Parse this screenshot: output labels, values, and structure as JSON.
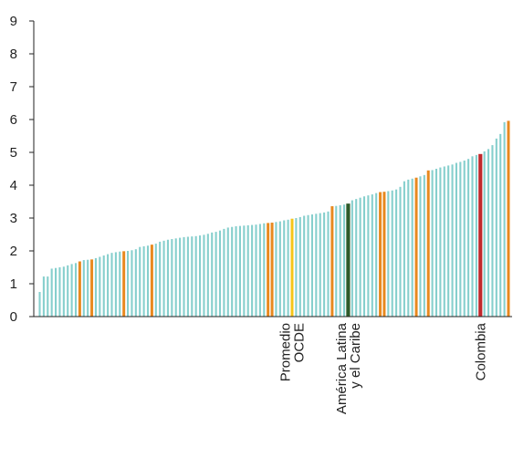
{
  "chart_data": {
    "type": "bar",
    "title": "",
    "xlabel": "",
    "ylabel": "",
    "ylim": [
      0,
      9
    ],
    "yticks": [
      0,
      1,
      2,
      3,
      4,
      5,
      6,
      7,
      8,
      9
    ],
    "grid": false,
    "colors": {
      "default": "#86cfcd",
      "oecd_member": "#e8891f",
      "oecd_average": "#f5c518",
      "latam_caribbean": "#2e5b2a",
      "colombia": "#c0282d",
      "axis": "#222222"
    },
    "values": [
      0.75,
      1.22,
      1.22,
      1.46,
      1.48,
      1.5,
      1.52,
      1.56,
      1.6,
      1.63,
      1.68,
      1.72,
      1.73,
      1.74,
      1.78,
      1.82,
      1.86,
      1.9,
      1.94,
      1.96,
      1.98,
      1.99,
      2.0,
      2.02,
      2.05,
      2.12,
      2.14,
      2.16,
      2.19,
      2.22,
      2.28,
      2.31,
      2.34,
      2.36,
      2.38,
      2.4,
      2.42,
      2.43,
      2.44,
      2.45,
      2.47,
      2.49,
      2.52,
      2.56,
      2.58,
      2.62,
      2.67,
      2.71,
      2.73,
      2.75,
      2.76,
      2.77,
      2.78,
      2.79,
      2.8,
      2.82,
      2.84,
      2.85,
      2.86,
      2.88,
      2.9,
      2.93,
      2.95,
      2.98,
      3.0,
      3.03,
      3.07,
      3.09,
      3.11,
      3.13,
      3.15,
      3.17,
      3.2,
      3.36,
      3.37,
      3.39,
      3.41,
      3.44,
      3.54,
      3.58,
      3.62,
      3.66,
      3.69,
      3.72,
      3.76,
      3.79,
      3.8,
      3.82,
      3.84,
      3.87,
      3.95,
      4.12,
      4.17,
      4.2,
      4.23,
      4.27,
      4.31,
      4.45,
      4.46,
      4.5,
      4.54,
      4.57,
      4.6,
      4.63,
      4.68,
      4.71,
      4.75,
      4.8,
      4.88,
      4.92,
      4.95,
      5.03,
      5.1,
      5.22,
      5.42,
      5.56,
      5.92,
      5.96
    ],
    "highlights": [
      {
        "index": 10,
        "group": "oecd_member"
      },
      {
        "index": 13,
        "group": "oecd_member"
      },
      {
        "index": 21,
        "group": "oecd_member"
      },
      {
        "index": 28,
        "group": "oecd_member"
      },
      {
        "index": 57,
        "group": "oecd_member"
      },
      {
        "index": 58,
        "group": "oecd_member"
      },
      {
        "index": 63,
        "group": "oecd_average"
      },
      {
        "index": 73,
        "group": "oecd_member"
      },
      {
        "index": 77,
        "group": "latam_caribbean"
      },
      {
        "index": 85,
        "group": "oecd_member"
      },
      {
        "index": 86,
        "group": "oecd_member"
      },
      {
        "index": 94,
        "group": "oecd_member"
      },
      {
        "index": 97,
        "group": "oecd_member"
      },
      {
        "index": 110,
        "group": "colombia"
      },
      {
        "index": 117,
        "group": "oecd_member"
      }
    ],
    "category_labels": [
      {
        "index": 63,
        "lines": [
          "Promedio",
          "OCDE"
        ]
      },
      {
        "index": 77,
        "lines": [
          "América Latina",
          "y el Caribe"
        ]
      },
      {
        "index": 110,
        "lines": [
          "Colombia"
        ]
      }
    ]
  }
}
